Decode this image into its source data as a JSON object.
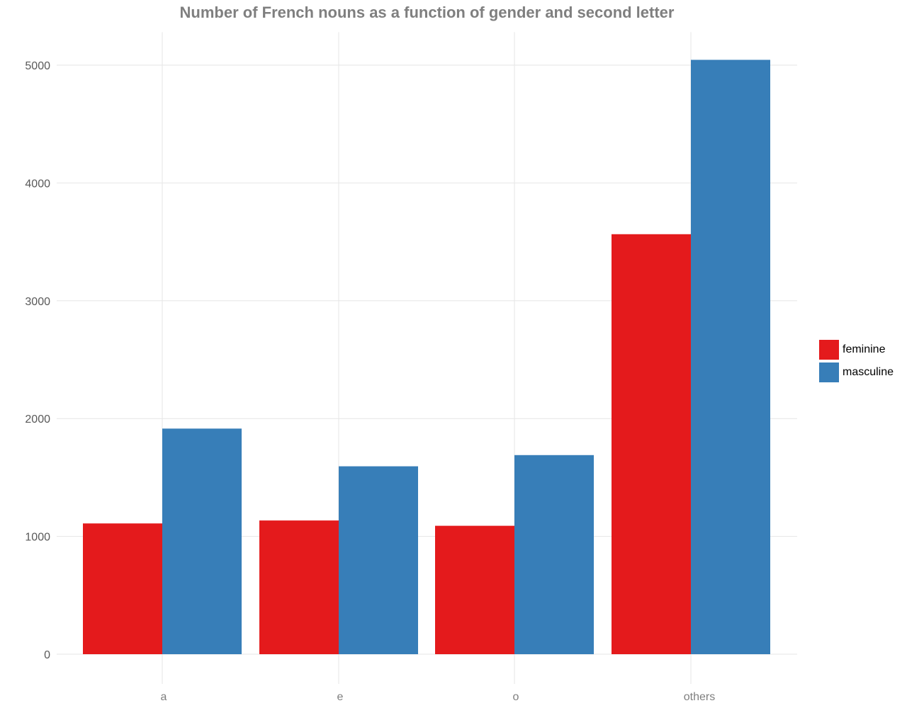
{
  "chart_data": {
    "type": "bar",
    "title": "Number of French nouns as a function of gender and second letter",
    "xlabel": "",
    "ylabel": "",
    "categories": [
      "a",
      "e",
      "o",
      "others"
    ],
    "series": [
      {
        "name": "feminine",
        "color": "#e41a1c",
        "values": [
          1110,
          1135,
          1090,
          3565
        ]
      },
      {
        "name": "masculine",
        "color": "#377eb8",
        "values": [
          1915,
          1595,
          1690,
          5045
        ]
      }
    ],
    "ylim": [
      0,
      5280
    ],
    "yticks": [
      0,
      1000,
      2000,
      3000,
      4000,
      5000
    ],
    "grid": true,
    "legend_position": "right"
  }
}
